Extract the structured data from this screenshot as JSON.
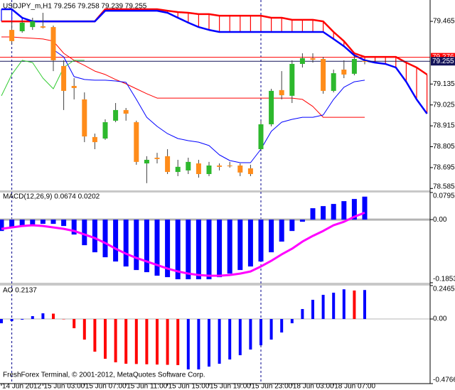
{
  "footer": "FreshForex Terminal, © 2001-2012, MetaQuotes Software Corp.",
  "chart_data": [
    {
      "type": "candlestick",
      "title": "USDJPY_m,H1 79.256 79.258 79.239 79.255",
      "categories": [
        "14 Jun 2012",
        null,
        null,
        null,
        "15 Jun 03:00",
        null,
        null,
        null,
        "15 Jun 07:00",
        null,
        null,
        null,
        "15 Jun 11:00",
        null,
        null,
        null,
        "15 Jun 15:00",
        null,
        null,
        null,
        "15 Jun 19:00",
        null,
        null,
        null,
        "15 Jun 23:00",
        null,
        null,
        null,
        "18 Jun 03:00",
        null,
        null,
        null,
        "18 Jun 07:00",
        null,
        null,
        null,
        null,
        null,
        null,
        null,
        null,
        null
      ],
      "open": [
        null,
        79.42,
        79.413,
        79.435,
        79.439,
        79.435,
        79.23,
        79.125,
        79.054,
        78.856,
        78.848,
        78.942,
        78.998,
        78.934,
        78.717,
        78.747,
        78.755,
        78.672,
        78.68,
        78.717,
        78.661,
        78.706,
        78.706,
        78.706,
        78.691,
        78.792,
        78.923,
        79.103,
        79.073,
        79.241,
        79.271,
        79.267,
        79.099,
        79.211,
        79.189,
        79.256,
        null,
        null,
        null,
        null,
        null,
        null
      ],
      "high": [
        null,
        79.465,
        79.465,
        79.484,
        79.51,
        79.443,
        79.26,
        79.166,
        79.091,
        78.874,
        78.949,
        79.035,
        79.009,
        78.942,
        78.755,
        78.773,
        78.792,
        78.736,
        78.747,
        78.736,
        78.725,
        78.717,
        78.725,
        78.717,
        78.71,
        78.942,
        79.11,
        79.203,
        79.26,
        79.297,
        79.297,
        79.278,
        79.211,
        79.26,
        79.286,
        79.258,
        null,
        null,
        null,
        null,
        null,
        null
      ],
      "low": [
        null,
        79.346,
        79.405,
        79.42,
        79.428,
        79.203,
        78.998,
        79.054,
        78.829,
        78.792,
        78.841,
        78.934,
        78.942,
        78.71,
        78.613,
        78.717,
        78.661,
        78.65,
        78.661,
        78.642,
        78.65,
        78.68,
        78.695,
        78.65,
        78.65,
        78.785,
        78.912,
        79.054,
        79.035,
        79.222,
        79.248,
        79.084,
        79.091,
        79.166,
        79.181,
        79.239,
        null,
        null,
        null,
        null,
        null,
        null
      ],
      "close": [
        null,
        79.361,
        79.458,
        79.465,
        79.432,
        79.26,
        79.099,
        79.114,
        78.859,
        78.829,
        78.934,
        78.998,
        78.979,
        78.725,
        78.736,
        78.74,
        78.672,
        78.699,
        78.725,
        78.661,
        78.706,
        78.699,
        78.702,
        78.669,
        78.661,
        78.923,
        79.099,
        79.076,
        79.241,
        79.271,
        79.263,
        79.099,
        79.192,
        79.185,
        79.267,
        79.255,
        null,
        null,
        null,
        null,
        null,
        null
      ],
      "color_up": "#2db82d",
      "color_down": "#ff8c1a",
      "wick_color": "#404040",
      "series": [
        {
          "color": "#ff0000",
          "values": [
            79.383,
            79.383,
            79.379,
            79.376,
            79.372,
            79.361,
            79.297,
            79.26,
            79.233,
            79.203,
            79.185,
            79.159,
            79.136,
            79.11,
            79.084,
            79.061,
            79.061,
            79.061,
            79.061,
            79.061,
            79.061,
            79.061,
            79.061,
            79.061,
            79.061,
            79.061,
            79.061,
            79.061,
            79.061,
            79.054,
            79.017,
            78.96,
            78.96,
            78.96,
            78.96,
            78.96,
            null,
            null,
            null,
            null,
            null,
            null
          ]
        },
        {
          "color": "#0000ff",
          "values": [
            null,
            null,
            null,
            null,
            null,
            79.316,
            79.278,
            79.174,
            79.159,
            79.155,
            79.155,
            79.151,
            79.144,
            79.054,
            78.96,
            78.912,
            78.874,
            78.848,
            78.837,
            78.829,
            78.811,
            78.762,
            78.732,
            78.721,
            78.721,
            78.792,
            78.886,
            78.934,
            78.949,
            78.96,
            78.96,
            78.972,
            79.054,
            79.118,
            79.147,
            79.155,
            null,
            null,
            null,
            null,
            null,
            null
          ]
        },
        {
          "color": "#33cc33",
          "values": [
            79.073,
            79.185,
            79.26,
            79.248,
            79.166,
            79.11,
            79.222,
            79.26,
            79.26,
            null,
            null,
            null,
            null,
            null,
            null,
            null,
            null,
            null,
            null,
            null,
            null,
            null,
            null,
            null,
            null,
            null,
            null,
            null,
            null,
            null,
            null,
            null,
            null,
            null,
            null,
            null,
            null,
            null,
            null,
            null,
            null,
            null
          ]
        }
      ],
      "cloud": [
        {
          "color": "#ff0000",
          "values": [
            79.465,
            79.465,
            79.465,
            79.465,
            79.465,
            79.465,
            79.465,
            79.465,
            79.465,
            79.465,
            79.529,
            79.529,
            79.529,
            79.529,
            79.529,
            79.529,
            79.521,
            79.514,
            79.51,
            79.503,
            79.503,
            79.495,
            79.495,
            79.495,
            79.495,
            79.495,
            79.484,
            79.484,
            79.473,
            79.473,
            79.473,
            79.465,
            79.409,
            79.361,
            79.297,
            79.278,
            79.278,
            79.278,
            79.278,
            79.248,
            79.222,
            79.185
          ]
        },
        {
          "color": "#0000ff",
          "values": [
            79.529,
            79.529,
            79.484,
            79.465,
            79.465,
            79.465,
            79.465,
            79.465,
            79.465,
            79.465,
            79.521,
            79.521,
            79.521,
            79.521,
            79.521,
            79.521,
            79.51,
            79.484,
            79.458,
            79.435,
            79.42,
            79.409,
            79.409,
            79.409,
            79.409,
            79.409,
            79.409,
            79.409,
            79.409,
            79.409,
            79.409,
            79.409,
            79.372,
            79.334,
            79.286,
            79.26,
            79.248,
            79.241,
            79.222,
            79.147,
            79.054,
            78.979
          ]
        }
      ],
      "price_lines": [
        {
          "value": 79.276,
          "color": "#ff0000"
        },
        {
          "value": 79.255,
          "color": "#14145a"
        }
      ],
      "period_separators": [
        1,
        25
      ],
      "separator_color": "#00008b",
      "ylim": [
        78.575,
        79.57
      ],
      "yticks": [
        79.465,
        79.135,
        79.025,
        78.915,
        78.805,
        78.695,
        78.585
      ],
      "grid": false
    },
    {
      "type": "bar",
      "title": "MACD(12,26,9) 0.0674 0.0202",
      "values": [
        -0.0334,
        -0.0229,
        -0.0188,
        -0.0146,
        -0.0125,
        -0.0125,
        -0.0188,
        -0.0438,
        -0.0751,
        -0.0959,
        -0.1105,
        -0.123,
        -0.1376,
        -0.148,
        -0.1543,
        -0.1647,
        -0.1689,
        -0.1751,
        -0.1751,
        -0.1751,
        -0.1751,
        -0.1689,
        -0.1585,
        -0.148,
        -0.1376,
        -0.123,
        -0.0959,
        -0.0646,
        -0.0334,
        -0.0063,
        0.0334,
        0.0396,
        0.0459,
        0.0542,
        0.0605,
        0.0674
      ],
      "color": "#0000ff",
      "series": [
        {
          "color": "#ff00ff",
          "values": [
            -0.0271,
            -0.0229,
            -0.0188,
            -0.0167,
            -0.0188,
            -0.0229,
            -0.0271,
            -0.0334,
            -0.0438,
            -0.0542,
            -0.0688,
            -0.0855,
            -0.1001,
            -0.1126,
            -0.123,
            -0.1334,
            -0.1439,
            -0.1522,
            -0.1585,
            -0.1626,
            -0.1647,
            -0.1647,
            -0.1626,
            -0.1585,
            -0.1522,
            -0.1376,
            -0.1209,
            -0.1022,
            -0.0855,
            -0.0646,
            -0.048,
            -0.0334,
            -0.0167,
            -0.0063,
            0.0083,
            0.0202
          ]
        }
      ],
      "zero_line_color": "#b4b4b4",
      "ylim": [
        -0.1853,
        0.0795
      ],
      "yticks": [
        0.0795,
        {
          "value": 0,
          "label": "0.00"
        },
        -0.1853
      ],
      "grid": false
    },
    {
      "type": "bar",
      "title": "AO 0.2137",
      "values": [
        -0.0314,
        -0.0157,
        -0.0052,
        0.021,
        0.0419,
        0.0395,
        -0.002,
        -0.0681,
        -0.152,
        -0.241,
        -0.2934,
        -0.3196,
        -0.3301,
        -0.332,
        -0.334,
        -0.336,
        -0.338,
        -0.34,
        -0.372,
        -0.372,
        -0.3511,
        -0.3301,
        -0.2987,
        -0.2672,
        -0.2253,
        -0.1939,
        -0.152,
        -0.0996,
        -0.0314,
        0.0734,
        0.1415,
        0.1782,
        0.1939,
        0.219,
        0.21,
        0.2137
      ],
      "colors": [
        "#0000ff",
        "#0000ff",
        "#0000ff",
        "#0000ff",
        "#0000ff",
        "#ff0000",
        "#ff0000",
        "#ff0000",
        "#ff0000",
        "#ff0000",
        "#ff0000",
        "#ff0000",
        "#ff0000",
        "#ff0000",
        "#ff0000",
        "#ff0000",
        "#ff0000",
        "#ff0000",
        "#0000ff",
        "#0000ff",
        "#0000ff",
        "#0000ff",
        "#0000ff",
        "#0000ff",
        "#0000ff",
        "#0000ff",
        "#0000ff",
        "#0000ff",
        "#0000ff",
        "#0000ff",
        "#0000ff",
        "#0000ff",
        "#0000ff",
        "#0000ff",
        "#ff0000",
        "#0000ff"
      ],
      "zero_line_color": "#b4b4b4",
      "ylim": [
        -0.4766,
        0.2465
      ],
      "yticks": [
        0.2465,
        {
          "value": 0,
          "label": "0.00"
        },
        -0.4766
      ],
      "grid": false
    }
  ]
}
